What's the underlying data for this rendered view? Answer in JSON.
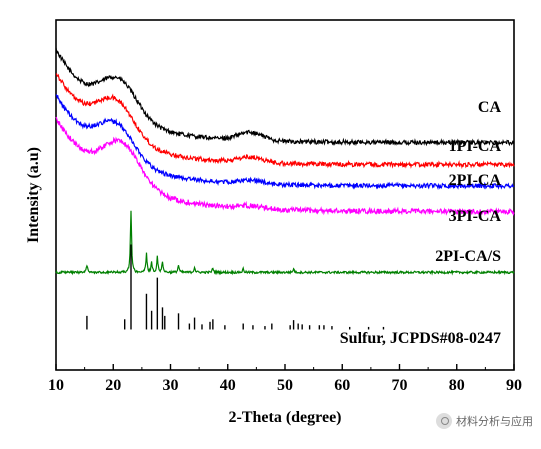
{
  "chart_data": {
    "type": "line",
    "xlabel": "2-Theta (degree)",
    "ylabel": "Intensity (a.u)",
    "xlim": [
      10,
      90
    ],
    "xticks": [
      10,
      20,
      30,
      40,
      50,
      60,
      70,
      80,
      90
    ],
    "grid": false,
    "legend": "labels next to each curve on the right",
    "series": [
      {
        "name": "CA",
        "color": "#000000",
        "kind": "broad",
        "curve": {
          "start": 0.74,
          "hump_center": 21,
          "hump_width": 4.5,
          "hump_height": 0.2,
          "tail": 0.235,
          "decay": 9,
          "bump_center": 44,
          "bump_height": 0.045,
          "noise": 0.012
        }
      },
      {
        "name": "1PI-CA",
        "color": "#ff0000",
        "kind": "broad",
        "curve": {
          "start": 0.615,
          "hump_center": 20.5,
          "hump_width": 4.5,
          "hump_height": 0.2,
          "tail": 0.115,
          "decay": 9,
          "bump_center": 44,
          "bump_height": 0.03,
          "noise": 0.012
        }
      },
      {
        "name": "2PI-CA",
        "color": "#0000ff",
        "kind": "broad",
        "curve": {
          "start": 0.495,
          "hump_center": 20.5,
          "hump_width": 4.5,
          "hump_height": 0.19,
          "tail": 0.0,
          "decay": 9,
          "bump_center": 44,
          "bump_height": 0.02,
          "noise": 0.012
        }
      },
      {
        "name": "3PI-CA",
        "color": "#ff00ff",
        "kind": "broad",
        "curve": {
          "start": 0.365,
          "hump_center": 21.5,
          "hump_width": 4.5,
          "hump_height": 0.22,
          "tail": -0.14,
          "decay": 10,
          "bump_center": 44,
          "bump_height": 0.015,
          "noise": 0.014
        }
      },
      {
        "name": "2PI-CA/S",
        "color": "#008000",
        "kind": "peaks",
        "curve": {
          "baseline": -0.47,
          "noise": 0.006
        }
      },
      {
        "name": "Sulfur, JCPDS#08-0247",
        "color": "#000000",
        "kind": "reference",
        "curve": {
          "baseline": -0.78
        }
      }
    ],
    "sulfur_peaks": [
      {
        "x": 15.4,
        "h": 0.16
      },
      {
        "x": 22.0,
        "h": 0.12
      },
      {
        "x": 23.1,
        "h": 1.0
      },
      {
        "x": 25.8,
        "h": 0.42
      },
      {
        "x": 26.7,
        "h": 0.22
      },
      {
        "x": 27.7,
        "h": 0.61
      },
      {
        "x": 28.6,
        "h": 0.26
      },
      {
        "x": 29.0,
        "h": 0.16
      },
      {
        "x": 31.4,
        "h": 0.19
      },
      {
        "x": 33.3,
        "h": 0.07
      },
      {
        "x": 34.2,
        "h": 0.14
      },
      {
        "x": 35.5,
        "h": 0.06
      },
      {
        "x": 36.9,
        "h": 0.09
      },
      {
        "x": 37.4,
        "h": 0.12
      },
      {
        "x": 39.5,
        "h": 0.05
      },
      {
        "x": 42.7,
        "h": 0.07
      },
      {
        "x": 44.4,
        "h": 0.05
      },
      {
        "x": 46.5,
        "h": 0.04
      },
      {
        "x": 47.7,
        "h": 0.07
      },
      {
        "x": 50.9,
        "h": 0.05
      },
      {
        "x": 51.5,
        "h": 0.11
      },
      {
        "x": 52.3,
        "h": 0.07
      },
      {
        "x": 53.0,
        "h": 0.06
      },
      {
        "x": 54.3,
        "h": 0.05
      },
      {
        "x": 56.0,
        "h": 0.05
      },
      {
        "x": 56.8,
        "h": 0.05
      },
      {
        "x": 58.2,
        "h": 0.04
      },
      {
        "x": 61.3,
        "h": 0.03
      },
      {
        "x": 64.6,
        "h": 0.03
      },
      {
        "x": 67.2,
        "h": 0.03
      }
    ],
    "sample_peaks": [
      {
        "x": 15.4,
        "h": 0.04
      },
      {
        "x": 23.1,
        "h": 0.34
      },
      {
        "x": 25.8,
        "h": 0.1
      },
      {
        "x": 26.7,
        "h": 0.05
      },
      {
        "x": 27.7,
        "h": 0.09
      },
      {
        "x": 28.6,
        "h": 0.06
      },
      {
        "x": 31.4,
        "h": 0.04
      },
      {
        "x": 34.2,
        "h": 0.03
      },
      {
        "x": 37.4,
        "h": 0.025
      },
      {
        "x": 42.7,
        "h": 0.02
      },
      {
        "x": 51.5,
        "h": 0.02
      }
    ]
  },
  "watermark": {
    "text": "材料分析与应用",
    "icon": "wechat-icon"
  }
}
